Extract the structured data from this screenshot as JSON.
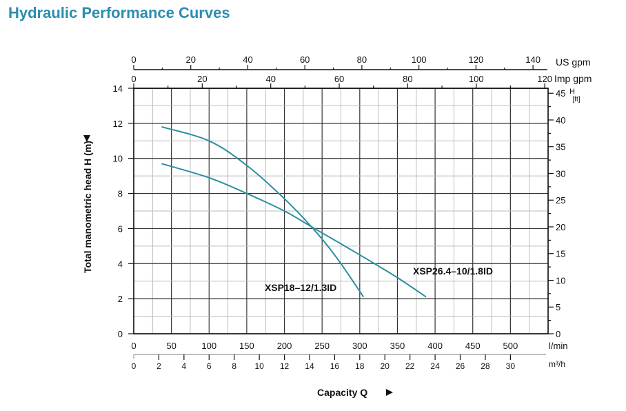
{
  "title": "Hydraulic Performance Curves",
  "chart_data": {
    "type": "line",
    "title": "Hydraulic Performance Curves",
    "xlabel": "Capacity Q",
    "ylabel": "Total manometric head H (m)",
    "xlim": [
      0,
      550
    ],
    "ylim": [
      0,
      14
    ],
    "grid": true,
    "x_axes": {
      "lmin": {
        "unit": "l/min",
        "ticks": [
          0,
          50,
          100,
          150,
          200,
          250,
          300,
          350,
          400,
          450,
          500
        ]
      },
      "m3h": {
        "unit": "m³/h",
        "ticks": [
          0,
          2,
          4,
          6,
          8,
          10,
          12,
          14,
          16,
          18,
          20,
          22,
          24,
          26,
          28,
          30
        ]
      },
      "usgpm": {
        "unit": "US gpm",
        "ticks": [
          0,
          20,
          40,
          60,
          80,
          100,
          120,
          140
        ]
      },
      "impgpm": {
        "unit": "Imp gpm",
        "ticks": [
          0,
          20,
          40,
          60,
          80,
          100,
          120
        ]
      }
    },
    "y_axes": {
      "m": {
        "unit": "H (m)",
        "ticks": [
          0,
          2,
          4,
          6,
          8,
          10,
          12,
          14
        ]
      },
      "ft": {
        "unit_top": "H",
        "unit_bottom": "[ft]",
        "ticks": [
          0,
          5,
          10,
          15,
          20,
          25,
          30,
          35,
          40,
          45
        ]
      }
    },
    "series": [
      {
        "name": "XSP18-12/1.3ID",
        "color": "#2a8f9e",
        "points": [
          [
            37,
            11.8
          ],
          [
            100,
            11.0
          ],
          [
            150,
            9.6
          ],
          [
            200,
            7.7
          ],
          [
            240,
            5.9
          ],
          [
            270,
            4.3
          ],
          [
            305,
            2.1
          ]
        ]
      },
      {
        "name": "XSP26.4-10/1.8ID",
        "color": "#2a8f9e",
        "points": [
          [
            37,
            9.7
          ],
          [
            100,
            8.9
          ],
          [
            150,
            8.0
          ],
          [
            200,
            7.0
          ],
          [
            240,
            6.0
          ],
          [
            300,
            4.5
          ],
          [
            350,
            3.2
          ],
          [
            388,
            2.1
          ]
        ]
      }
    ]
  }
}
